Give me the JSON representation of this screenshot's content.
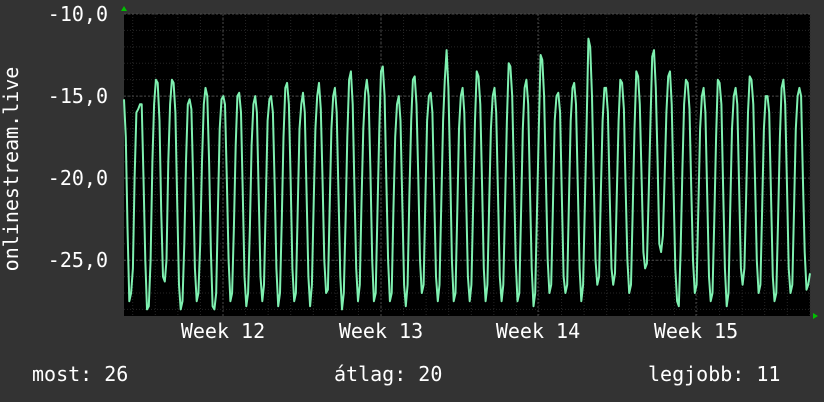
{
  "colors": {
    "background": "#333333",
    "plot_background": "#000000",
    "grid_major": "#4a4a4a",
    "grid_minor": "#262626",
    "series": "#7ff0b0",
    "axis_arrow": "#00c000",
    "text": "#ffffff"
  },
  "legend": {
    "now_label": "most:",
    "now_value": "26",
    "avg_label": "átlag:",
    "avg_value": "20",
    "max_label": "legjobb:",
    "max_value": "11"
  },
  "chart_data": {
    "type": "line",
    "title": "",
    "ylabel": "onlinestream.live",
    "xlabel": "",
    "y_axis_inverted": true,
    "ylim": [
      -10.0,
      -28.4
    ],
    "yticks": [
      -10.0,
      -15.0,
      -20.0,
      -25.0
    ],
    "ytick_labels": [
      "-10,0",
      "-15,0",
      "-20,0",
      "-25,0"
    ],
    "xlim": [
      0,
      686
    ],
    "xticks": [
      99,
      257,
      414,
      572
    ],
    "xtick_labels": [
      "Week 12",
      "Week 13",
      "Week 14",
      "Week 15"
    ],
    "grid": true,
    "series": [
      {
        "values": [
          -15.2,
          -17.5,
          -23.0,
          -27.5,
          -27.0,
          -25.5,
          -20.0,
          -16.0,
          -15.8,
          -15.5,
          -15.5,
          -20.0,
          -25.0,
          -28.0,
          -27.8,
          -25.0,
          -19.0,
          -15.5,
          -14.0,
          -14.2,
          -16.5,
          -22.0,
          -26.0,
          -26.3,
          -25.0,
          -19.0,
          -15.5,
          -14.0,
          -14.2,
          -16.0,
          -21.5,
          -26.5,
          -28.0,
          -27.5,
          -24.0,
          -19.0,
          -15.5,
          -15.2,
          -15.8,
          -20.0,
          -25.5,
          -27.5,
          -27.0,
          -24.0,
          -19.0,
          -15.5,
          -14.5,
          -15.0,
          -19.0,
          -24.5,
          -27.8,
          -28.0,
          -27.0,
          -22.0,
          -17.0,
          -15.2,
          -15.0,
          -15.5,
          -20.0,
          -25.0,
          -27.5,
          -27.0,
          -23.0,
          -18.0,
          -15.0,
          -14.8,
          -16.0,
          -21.0,
          -26.0,
          -27.8,
          -27.0,
          -23.0,
          -18.0,
          -15.5,
          -15.0,
          -16.0,
          -21.0,
          -26.0,
          -27.5,
          -26.5,
          -21.5,
          -16.5,
          -15.2,
          -15.0,
          -16.0,
          -20.5,
          -25.5,
          -27.8,
          -27.0,
          -22.5,
          -17.5,
          -14.5,
          -14.2,
          -15.5,
          -20.0,
          -25.5,
          -27.5,
          -27.0,
          -22.0,
          -17.0,
          -15.5,
          -14.8,
          -16.0,
          -21.0,
          -26.0,
          -27.8,
          -26.5,
          -21.5,
          -17.0,
          -15.0,
          -14.2,
          -15.8,
          -20.0,
          -25.0,
          -27.0,
          -26.8,
          -22.0,
          -17.0,
          -15.0,
          -14.5,
          -16.0,
          -21.0,
          -26.0,
          -28.0,
          -27.0,
          -22.5,
          -17.5,
          -14.0,
          -13.5,
          -15.5,
          -20.5,
          -25.5,
          -27.5,
          -26.5,
          -21.5,
          -17.0,
          -14.8,
          -14.0,
          -15.0,
          -19.5,
          -25.0,
          -27.5,
          -27.0,
          -22.0,
          -17.0,
          -13.5,
          -13.2,
          -15.0,
          -20.0,
          -25.0,
          -27.5,
          -27.0,
          -22.0,
          -17.5,
          -15.5,
          -15.0,
          -16.5,
          -21.5,
          -26.5,
          -27.8,
          -26.5,
          -21.0,
          -16.5,
          -14.0,
          -13.8,
          -15.5,
          -20.0,
          -25.0,
          -27.0,
          -26.5,
          -21.5,
          -16.5,
          -15.0,
          -14.8,
          -16.0,
          -21.0,
          -26.0,
          -27.5,
          -26.5,
          -21.5,
          -16.5,
          -14.0,
          -12.2,
          -14.5,
          -19.5,
          -25.0,
          -27.5,
          -27.0,
          -22.0,
          -17.0,
          -15.0,
          -14.5,
          -16.0,
          -21.0,
          -26.0,
          -27.5,
          -26.5,
          -21.5,
          -16.5,
          -13.5,
          -13.8,
          -15.5,
          -20.5,
          -25.5,
          -27.5,
          -26.5,
          -21.5,
          -17.0,
          -15.0,
          -14.5,
          -16.0,
          -21.0,
          -26.0,
          -27.5,
          -26.5,
          -21.5,
          -16.5,
          -13.0,
          -13.2,
          -15.0,
          -20.0,
          -25.0,
          -27.5,
          -27.0,
          -22.0,
          -17.0,
          -14.5,
          -14.0,
          -15.5,
          -20.5,
          -25.5,
          -27.8,
          -27.0,
          -22.0,
          -17.0,
          -12.5,
          -12.8,
          -15.0,
          -20.0,
          -25.0,
          -27.0,
          -26.5,
          -21.5,
          -16.5,
          -15.0,
          -14.8,
          -16.0,
          -21.0,
          -26.0,
          -27.0,
          -26.5,
          -21.5,
          -16.5,
          -14.5,
          -14.2,
          -15.5,
          -20.5,
          -25.5,
          -27.5,
          -26.5,
          -21.5,
          -16.5,
          -11.5,
          -12.0,
          -15.0,
          -20.0,
          -25.0,
          -26.5,
          -26.0,
          -21.0,
          -16.5,
          -14.5,
          -14.5,
          -16.0,
          -21.0,
          -25.5,
          -26.5,
          -25.8,
          -21.0,
          -16.5,
          -14.0,
          -14.2,
          -15.8,
          -20.5,
          -25.0,
          -27.0,
          -26.5,
          -22.0,
          -17.0,
          -13.5,
          -13.8,
          -15.5,
          -20.0,
          -24.5,
          -25.5,
          -25.2,
          -21.0,
          -16.5,
          -12.6,
          -12.2,
          -14.5,
          -19.0,
          -24.0,
          -24.5,
          -23.5,
          -20.0,
          -16.0,
          -13.8,
          -13.5,
          -15.5,
          -20.5,
          -25.5,
          -27.5,
          -27.8,
          -24.5,
          -19.5,
          -15.5,
          -14.0,
          -14.2,
          -15.8,
          -20.5,
          -25.0,
          -27.0,
          -26.5,
          -22.0,
          -17.0,
          -15.0,
          -14.5,
          -16.0,
          -21.0,
          -26.0,
          -27.5,
          -27.0,
          -22.5,
          -17.5,
          -14.0,
          -14.2,
          -15.5,
          -20.5,
          -25.5,
          -27.8,
          -27.0,
          -22.0,
          -17.0,
          -15.0,
          -14.5,
          -15.5,
          -20.5,
          -25.5,
          -26.5,
          -25.5,
          -21.0,
          -16.0,
          -13.8,
          -14.0,
          -15.5,
          -20.0,
          -25.0,
          -27.0,
          -26.5,
          -22.0,
          -17.0,
          -15.0,
          -15.0,
          -16.0,
          -21.0,
          -26.0,
          -27.5,
          -27.0,
          -22.5,
          -17.5,
          -14.5,
          -14.0,
          -15.5,
          -20.5,
          -25.5,
          -27.0,
          -26.5,
          -22.0,
          -17.0,
          -15.0,
          -14.5,
          -15.0,
          -20.0,
          -24.5,
          -26.8,
          -26.5,
          -25.8
        ]
      }
    ]
  }
}
